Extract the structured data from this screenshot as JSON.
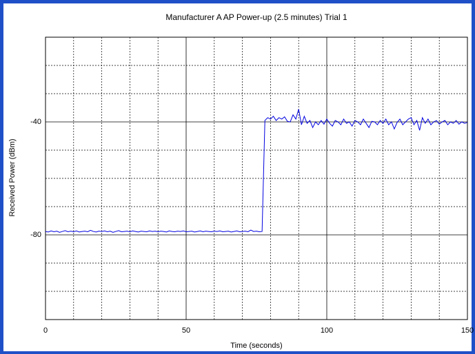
{
  "chart_data": {
    "type": "line",
    "title": "Manufacturer A AP Power-up (2.5 minutes) Trial 1",
    "x_label": "Time (seconds)",
    "y_label": "Received Power (dBm)",
    "xlim": [
      0,
      150
    ],
    "ylim": [
      -110,
      -10
    ],
    "xticks": [
      0,
      50,
      100,
      150
    ],
    "yticks": [
      -80,
      -40
    ],
    "minor_xticks": [
      10,
      20,
      30,
      40,
      60,
      70,
      80,
      90,
      110,
      120,
      130,
      140
    ],
    "minor_yticks": [
      -100,
      -90,
      -70,
      -60,
      -50,
      -30,
      -20
    ],
    "grid": true,
    "x": [
      0,
      1,
      2,
      3,
      4,
      5,
      6,
      7,
      8,
      9,
      10,
      11,
      12,
      13,
      14,
      15,
      16,
      17,
      18,
      19,
      20,
      21,
      22,
      23,
      24,
      25,
      26,
      27,
      28,
      29,
      30,
      31,
      32,
      33,
      34,
      35,
      36,
      37,
      38,
      39,
      40,
      41,
      42,
      43,
      44,
      45,
      46,
      47,
      48,
      49,
      50,
      51,
      52,
      53,
      54,
      55,
      56,
      57,
      58,
      59,
      60,
      61,
      62,
      63,
      64,
      65,
      66,
      67,
      68,
      69,
      70,
      71,
      72,
      73,
      74,
      75,
      76,
      77,
      78,
      79,
      80,
      81,
      82,
      83,
      84,
      85,
      86,
      87,
      88,
      89,
      90,
      91,
      92,
      93,
      94,
      95,
      96,
      97,
      98,
      99,
      100,
      101,
      102,
      103,
      104,
      105,
      106,
      107,
      108,
      109,
      110,
      111,
      112,
      113,
      114,
      115,
      116,
      117,
      118,
      119,
      120,
      121,
      122,
      123,
      124,
      125,
      126,
      127,
      128,
      129,
      130,
      131,
      132,
      133,
      134,
      135,
      136,
      137,
      138,
      139,
      140,
      141,
      142,
      143,
      144,
      145,
      146,
      147,
      148,
      149,
      150
    ],
    "series": [
      {
        "color": "#0000e0",
        "values": [
          -78.8,
          -79,
          -78.6,
          -78.9,
          -78.7,
          -79.1,
          -78.8,
          -78.5,
          -78.9,
          -78.7,
          -78.9,
          -78.6,
          -79,
          -78.8,
          -78.7,
          -78.9,
          -78.4,
          -78.8,
          -79,
          -78.7,
          -78.8,
          -78.6,
          -78.9,
          -78.7,
          -79.1,
          -78.8,
          -78.5,
          -78.9,
          -78.8,
          -78.7,
          -78.9,
          -78.6,
          -78.8,
          -79,
          -78.7,
          -78.8,
          -78.9,
          -78.6,
          -78.8,
          -78.7,
          -78.9,
          -78.7,
          -78.8,
          -79,
          -78.6,
          -78.8,
          -78.9,
          -78.7,
          -78.8,
          -78.6,
          -78.9,
          -78.8,
          -78.7,
          -79,
          -78.8,
          -78.6,
          -78.9,
          -78.7,
          -78.8,
          -78.9,
          -78.7,
          -78.8,
          -78.6,
          -78.9,
          -78.8,
          -78.7,
          -79,
          -78.8,
          -78.6,
          -78.9,
          -78.8,
          -78.7,
          -78.9,
          -78.3,
          -78.8,
          -78.7,
          -78.9,
          -78.8,
          -39.5,
          -38.5,
          -39,
          -38,
          -39.5,
          -38.5,
          -39,
          -38.2,
          -39.8,
          -40,
          -37.5,
          -39,
          -35.5,
          -41,
          -38,
          -40.5,
          -39.5,
          -42,
          -40,
          -41,
          -39.5,
          -40.8,
          -39,
          -40.5,
          -41.5,
          -39.5,
          -40,
          -41,
          -39,
          -40.5,
          -40,
          -41.5,
          -39.5,
          -40,
          -41,
          -39,
          -40.5,
          -42,
          -39.8,
          -40,
          -41,
          -39.5,
          -40.5,
          -39,
          -41,
          -40,
          -42.5,
          -40.2,
          -39,
          -41,
          -40,
          -39,
          -38.5,
          -41,
          -39.5,
          -43,
          -38.5,
          -40.5,
          -39,
          -41,
          -40,
          -39.5,
          -40.8,
          -40,
          -39.5,
          -41,
          -40,
          -40.5,
          -39.5,
          -40.8,
          -40,
          -40.5,
          -40.2
        ]
      }
    ]
  }
}
